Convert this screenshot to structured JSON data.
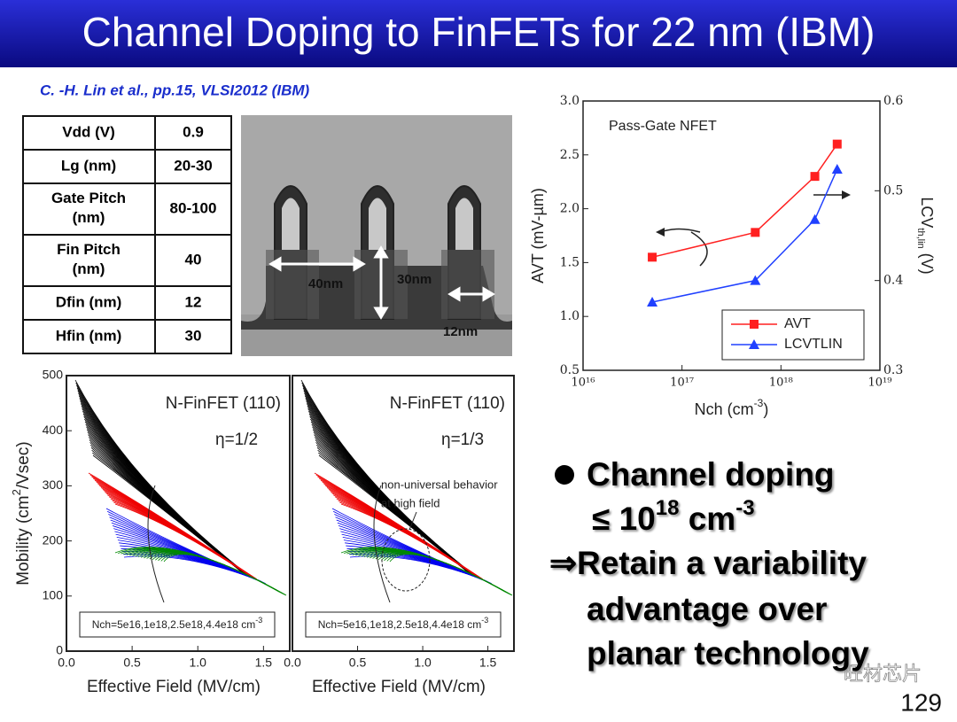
{
  "slide": {
    "title": "Channel Doping to FinFETs for 22 nm (IBM)",
    "citation": "C. -H. Lin et al., pp.15, VLSI2012 (IBM)",
    "table": {
      "rows": [
        [
          "Vdd (V)",
          "0.9"
        ],
        [
          "Lg (nm)",
          "20-30"
        ],
        [
          "Gate Pitch (nm)",
          "80-100"
        ],
        [
          "Fin Pitch (nm)",
          "40"
        ],
        [
          "Dfin (nm)",
          "12"
        ],
        [
          "Hfin (nm)",
          "30"
        ]
      ]
    },
    "sem_labels": [
      "40nm",
      "30nm",
      "12nm"
    ],
    "bullets": [
      [
        "Channel doping"
      ],
      [
        "≤ 10",
        "18",
        " cm",
        "-3"
      ],
      [
        "⇒Retain a variability"
      ],
      [
        "advantage over"
      ],
      [
        "planar technology"
      ]
    ],
    "page_number": "129",
    "watermark": "旺材芯片"
  },
  "chart_data": [
    {
      "type": "line",
      "annotation": "Pass-Gate NFET",
      "xlabel": [
        "Nch (cm",
        "-3",
        ")"
      ],
      "ylabel": "AVT (mV-µm)",
      "y2label": [
        "LCV",
        "th,lin",
        " (V)"
      ],
      "log_x": true,
      "xlim": [
        1e+16,
        1e+19
      ],
      "xticks": [
        {
          "value": 1e+16,
          "label": "10¹⁶"
        },
        {
          "value": 1e+17,
          "label": "10¹⁷"
        },
        {
          "value": 1e+18,
          "label": "10¹⁸"
        },
        {
          "value": 1e+19,
          "label": "10¹⁹"
        }
      ],
      "ylim": [
        0.5,
        3.0
      ],
      "yticks": [
        0.5,
        {
          "value": 1,
          "label": "1.0"
        },
        1.5,
        {
          "value": 2,
          "label": "2.0"
        },
        2.5,
        {
          "value": 3,
          "label": "3.0"
        }
      ],
      "y2lim": [
        0.3,
        0.6
      ],
      "y2ticks": [
        0.3,
        0.4,
        0.5,
        0.6
      ],
      "x": [
        5e+16,
        5.5e+17,
        2.2e+18,
        3.7e+18
      ],
      "series": [
        {
          "name": "AVT",
          "color": "#ff2020",
          "marker": "square",
          "values": [
            1.55,
            1.78,
            2.3,
            2.6
          ]
        },
        {
          "name": "LCVTLIN",
          "color": "#2040ff",
          "marker": "triangle",
          "axis": "y2",
          "values": [
            0.376,
            0.4,
            0.468,
            0.524
          ]
        }
      ],
      "legend": "lower right"
    },
    {
      "type": "line",
      "annotation": [
        "N-FinFET (110)",
        "η=1/2"
      ],
      "note": [
        "Nch=5e16,1e18,2.5e18,4.4e18 cm",
        "-3"
      ],
      "xlabel": "Effective Field (MV/cm)",
      "ylabel": [
        "Mobility (cm",
        "2",
        "/Vsec)"
      ],
      "xlim": [
        0,
        1.7
      ],
      "xticks": [
        {
          "value": 0,
          "label": "0.0"
        },
        0.5,
        {
          "value": 1,
          "label": "1.0"
        },
        1.5
      ],
      "ylim": [
        0,
        500
      ],
      "yticks": [
        0,
        100,
        200,
        300,
        400,
        500
      ]
    },
    {
      "type": "line",
      "annotation": [
        "N-FinFET (110)",
        "η=1/3",
        "non-universal behavior",
        "at high field"
      ],
      "note": [
        "Nch=5e16,1e18,2.5e18,4.4e18 cm",
        "-3"
      ],
      "xlabel": "Effective Field (MV/cm)",
      "xlim": [
        0,
        1.7
      ],
      "xticks": [
        {
          "value": 0,
          "label": "0.0"
        },
        0.5,
        {
          "value": 1,
          "label": "1.0"
        },
        1.5
      ],
      "ylim": [
        0,
        500
      ]
    }
  ]
}
